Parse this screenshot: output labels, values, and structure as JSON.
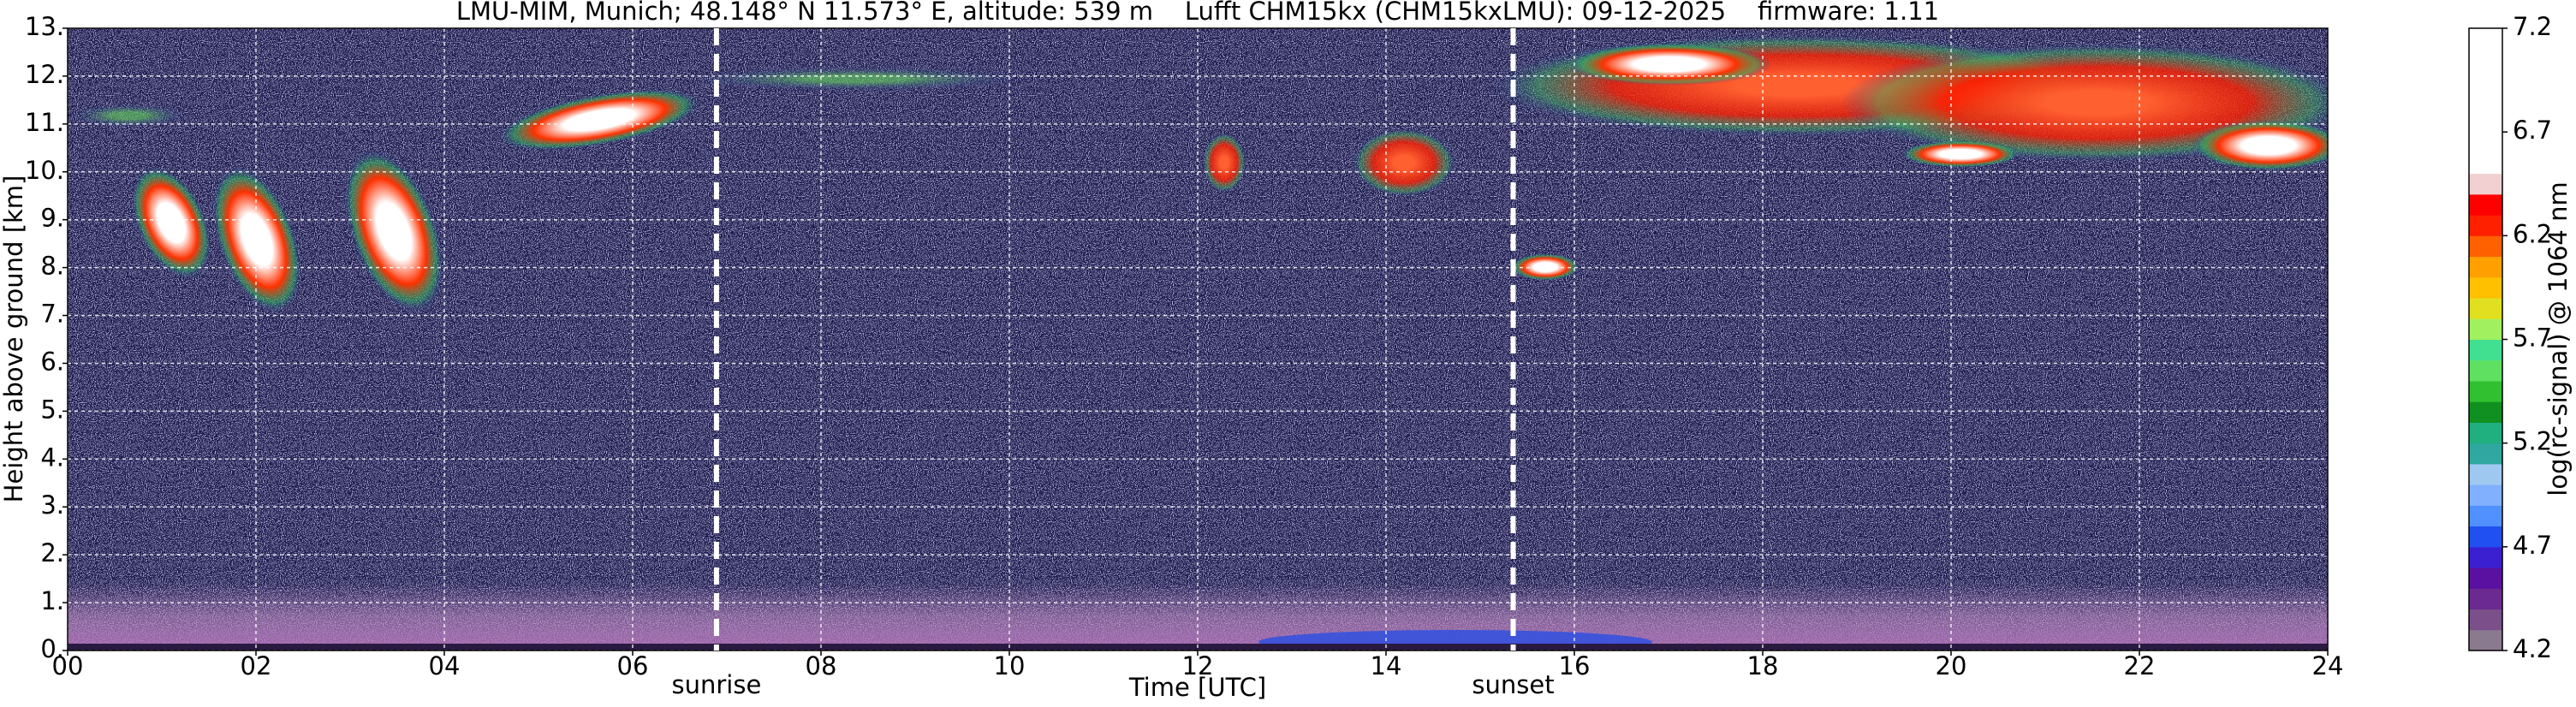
{
  "chart_data": {
    "type": "heatmap",
    "title": "LMU-MIM, Munich; 48.148° N 11.573° E, altitude: 539 m    Lufft CHM15kx (CHM15kxLMU): 09-12-2025    firmware: 1.11",
    "x_label": "Time [UTC]",
    "y_label": "Height above ground [km]",
    "xlim": [
      0,
      24
    ],
    "xticks": [
      {
        "value": 0,
        "label": "00"
      },
      {
        "value": 2,
        "label": "02"
      },
      {
        "value": 4,
        "label": "04"
      },
      {
        "value": 6,
        "label": "06"
      },
      {
        "value": 8,
        "label": "08"
      },
      10,
      12,
      14,
      16,
      18,
      20,
      22,
      24
    ],
    "ylim": [
      0,
      13
    ],
    "yticks": [
      {
        "value": 0,
        "label": "0."
      },
      {
        "value": 1,
        "label": "1."
      },
      {
        "value": 2,
        "label": "2."
      },
      {
        "value": 3,
        "label": "3."
      },
      {
        "value": 4,
        "label": "4."
      },
      {
        "value": 5,
        "label": "5."
      },
      {
        "value": 6,
        "label": "6."
      },
      {
        "value": 7,
        "label": "7."
      },
      {
        "value": 8,
        "label": "8."
      },
      {
        "value": 9,
        "label": "9."
      },
      {
        "value": 10,
        "label": "10."
      },
      {
        "value": 11,
        "label": "11."
      },
      {
        "value": 12,
        "label": "12."
      },
      {
        "value": 13,
        "label": "13."
      }
    ],
    "grid": true,
    "annotations": [
      {
        "x": 6.89,
        "label": "sunrise"
      },
      {
        "x": 15.35,
        "label": "sunset"
      }
    ],
    "colorbar": {
      "label": "log(rc-signal) @ 1064 nm",
      "lim": [
        4.2,
        7.2
      ],
      "ticks": [
        4.2,
        4.7,
        5.2,
        5.7,
        6.2,
        6.7,
        7.2
      ],
      "colors": [
        "#8a7a8e",
        "#7a4f8a",
        "#6a2a90",
        "#5a10a0",
        "#3a20d0",
        "#2050f0",
        "#5090ff",
        "#80b0ff",
        "#9fc8f0",
        "#30a8a0",
        "#20b080",
        "#109020",
        "#30c030",
        "#60e060",
        "#40e090",
        "#a0f060",
        "#e0e020",
        "#ffc000",
        "#ffa000",
        "#ff6000",
        "#ff2000",
        "#ff0000",
        "#f0d0d0",
        "#ffffff",
        "#ffffff",
        "#ffffff",
        "#ffffff",
        "#ffffff",
        "#ffffff",
        "#ffffff"
      ]
    }
  }
}
